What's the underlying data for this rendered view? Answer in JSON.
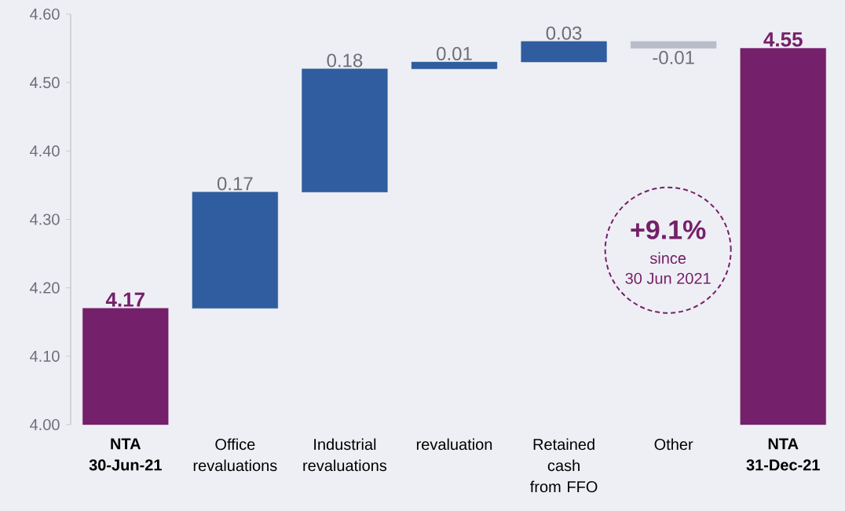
{
  "chart_data": {
    "type": "bar",
    "categories": [
      "NTA 30-Jun-21",
      "Office revaluations",
      "Industrial revaluations",
      "revaluation",
      "Retained cash from FFO",
      "Other",
      "NTA 31-Dec-21"
    ],
    "values": [
      4.17,
      0.17,
      0.18,
      0.01,
      0.03,
      -0.01,
      4.55
    ],
    "base": [
      null,
      4.17,
      4.34,
      4.52,
      4.53,
      4.56,
      null
    ],
    "colors": [
      "#75206a",
      "#2f5d9f",
      "#2f5d9f",
      "#2f5d9f",
      "#2f5d9f",
      "#b8bcc8",
      "#75206a"
    ],
    "value_labels": [
      "4.17",
      "0.17",
      "0.18",
      "0.01",
      "0.03",
      "-0.01",
      "4.55"
    ],
    "ylim": [
      4.0,
      4.6
    ],
    "yticks": [
      {
        "value": 4.0,
        "label": "4.00"
      },
      {
        "value": 4.1,
        "label": "4.10"
      },
      {
        "value": 4.2,
        "label": "4.20"
      },
      {
        "value": 4.3,
        "label": "4.30"
      },
      {
        "value": 4.4,
        "label": "4.40"
      },
      {
        "value": 4.5,
        "label": "4.50"
      },
      {
        "value": 4.6,
        "label": "4.60"
      }
    ],
    "grid": false,
    "annotations": [
      "+9.1%",
      "since",
      "30 Jun 2021"
    ]
  }
}
